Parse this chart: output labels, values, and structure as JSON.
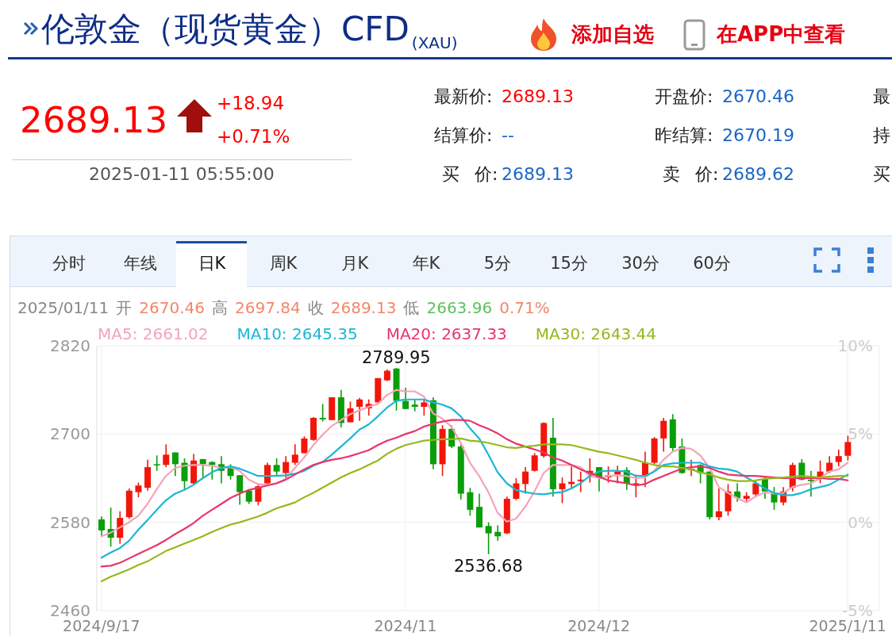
{
  "chart_data": {
    "type": "candlestick",
    "title": "伦敦金（现货黄金）CFD$_{(XAU)}$",
    "categories": [
      "2024/9/17",
      null,
      null,
      null,
      null,
      null,
      null,
      null,
      null,
      null,
      null,
      null,
      null,
      null,
      null,
      null,
      null,
      null,
      null,
      null,
      null,
      null,
      null,
      null,
      null,
      null,
      null,
      null,
      null,
      null,
      null,
      null,
      null,
      "2024/11",
      null,
      null,
      null,
      null,
      null,
      null,
      null,
      null,
      null,
      null,
      null,
      null,
      null,
      null,
      null,
      null,
      null,
      null,
      null,
      null,
      "2024/12",
      null,
      null,
      null,
      null,
      null,
      null,
      null,
      null,
      null,
      null,
      null,
      null,
      null,
      null,
      null,
      null,
      null,
      null,
      null,
      null,
      null,
      null,
      null,
      null,
      null,
      null,
      "2025/1/11"
    ],
    "ohlc": [
      [
        2584,
        2588,
        2561,
        2569
      ],
      [
        2571,
        2600,
        2547,
        2559
      ],
      [
        2559,
        2595,
        2551,
        2586
      ],
      [
        2587,
        2626,
        2585,
        2623
      ],
      [
        2621,
        2634,
        2614,
        2630
      ],
      [
        2627,
        2665,
        2623,
        2655
      ],
      [
        2659,
        2671,
        2650,
        2658
      ],
      [
        2658,
        2686,
        2655,
        2672
      ],
      [
        2675,
        2675,
        2643,
        2659
      ],
      [
        2661,
        2667,
        2625,
        2636
      ],
      [
        2633,
        2673,
        2632,
        2664
      ],
      [
        2666,
        2666,
        2641,
        2659
      ],
      [
        2662,
        2663,
        2638,
        2658
      ],
      [
        2659,
        2670,
        2633,
        2650
      ],
      [
        2654,
        2659,
        2638,
        2643
      ],
      [
        2644,
        2644,
        2604,
        2621
      ],
      [
        2623,
        2625,
        2605,
        2608
      ],
      [
        2608,
        2631,
        2603,
        2629
      ],
      [
        2633,
        2661,
        2631,
        2658
      ],
      [
        2658,
        2667,
        2644,
        2649
      ],
      [
        2647,
        2670,
        2640,
        2662
      ],
      [
        2661,
        2686,
        2658,
        2672
      ],
      [
        2674,
        2697,
        2674,
        2694
      ],
      [
        2692,
        2723,
        2691,
        2722
      ],
      [
        2722,
        2741,
        2717,
        2720
      ],
      [
        2719,
        2750,
        2719,
        2750
      ],
      [
        2750,
        2760,
        2709,
        2715
      ],
      [
        2716,
        2744,
        2716,
        2735
      ],
      [
        2737,
        2749,
        2718,
        2747
      ],
      [
        2735,
        2747,
        2725,
        2741
      ],
      [
        2743,
        2776,
        2743,
        2776
      ],
      [
        2773,
        2788,
        2772,
        2786
      ],
      [
        2789,
        2789.95,
        2732,
        2745
      ],
      [
        2745,
        2763,
        2734,
        2734
      ],
      [
        2740,
        2747,
        2731,
        2737
      ],
      [
        2737,
        2747,
        2725,
        2743
      ],
      [
        2746,
        2750,
        2652,
        2659
      ],
      [
        2659,
        2712,
        2643,
        2707
      ],
      [
        2707,
        2712,
        2681,
        2683
      ],
      [
        2683,
        2686,
        2611,
        2619
      ],
      [
        2621,
        2627,
        2589,
        2597
      ],
      [
        2601,
        2619,
        2573,
        2573
      ],
      [
        2575,
        2580,
        2536.68,
        2565
      ],
      [
        2567,
        2576,
        2555,
        2561
      ],
      [
        2565,
        2615,
        2564,
        2612
      ],
      [
        2612,
        2640,
        2610,
        2633
      ],
      [
        2632,
        2655,
        2619,
        2649
      ],
      [
        2650,
        2674,
        2649,
        2671
      ],
      [
        2670,
        2716,
        2668,
        2715
      ],
      [
        2695,
        2722,
        2615,
        2625
      ],
      [
        2625,
        2641,
        2606,
        2633
      ],
      [
        2632,
        2656,
        2627,
        2635
      ],
      [
        2636,
        2649,
        2621,
        2638
      ],
      [
        2645,
        2667,
        2634,
        2650
      ],
      [
        2655,
        2655,
        2622,
        2640
      ],
      [
        2641,
        2656,
        2634,
        2644
      ],
      [
        2645,
        2657,
        2633,
        2649
      ],
      [
        2651,
        2655,
        2624,
        2633
      ],
      [
        2631,
        2645,
        2614,
        2633
      ],
      [
        2643,
        2676,
        2628,
        2661
      ],
      [
        2661,
        2696,
        2659,
        2694
      ],
      [
        2694,
        2722,
        2676,
        2718
      ],
      [
        2720,
        2727,
        2676,
        2681
      ],
      [
        2683,
        2694,
        2646,
        2647
      ],
      [
        2651,
        2665,
        2643,
        2653
      ],
      [
        2658,
        2659,
        2633,
        2647
      ],
      [
        2649,
        2649,
        2584,
        2587
      ],
      [
        2587,
        2626,
        2583,
        2595
      ],
      [
        2595,
        2632,
        2589,
        2622
      ],
      [
        2622,
        2633,
        2608,
        2613
      ],
      [
        2612,
        2621,
        2609,
        2616
      ],
      [
        2618,
        2636,
        2615,
        2633
      ],
      [
        2639,
        2641,
        2612,
        2622
      ],
      [
        2619,
        2628,
        2597,
        2607
      ],
      [
        2607,
        2628,
        2603,
        2622
      ],
      [
        2627,
        2661,
        2622,
        2658
      ],
      [
        2661,
        2666,
        2637,
        2638
      ],
      [
        2638,
        2650,
        2615,
        2636
      ],
      [
        2640,
        2664,
        2633,
        2649
      ],
      [
        2649,
        2670,
        2647,
        2661
      ],
      [
        2662,
        2679,
        2656,
        2670
      ],
      [
        2670.46,
        2697.84,
        2663.96,
        2689.13
      ]
    ],
    "colors": [
      "#0a9e0a",
      "#0a9e0a",
      "#f2160a",
      "#f2160a",
      "#f2160a",
      "#f2160a",
      "#0a9e0a",
      "#f2160a",
      "#0a9e0a",
      "#0a9e0a",
      "#f2160a",
      "#0a9e0a",
      "#0a9e0a",
      "#0a9e0a",
      "#0a9e0a",
      "#0a9e0a",
      "#0a9e0a",
      "#f2160a",
      "#f2160a",
      "#0a9e0a",
      "#f2160a",
      "#f2160a",
      "#f2160a",
      "#f2160a",
      "#0a9e0a",
      "#f2160a",
      "#0a9e0a",
      "#f2160a",
      "#f2160a",
      "#f2160a",
      "#f2160a",
      "#f2160a",
      "#0a9e0a",
      "#0a9e0a",
      "#0a9e0a",
      "#f2160a",
      "#0a9e0a",
      "#f2160a",
      "#0a9e0a",
      "#0a9e0a",
      "#0a9e0a",
      "#0a9e0a",
      "#0a9e0a",
      "#0a9e0a",
      "#f2160a",
      "#f2160a",
      "#f2160a",
      "#f2160a",
      "#f2160a",
      "#0a9e0a",
      "#f2160a",
      "#f2160a",
      "#f2160a",
      "#f2160a",
      "#0a9e0a",
      "#f2160a",
      "#f2160a",
      "#0a9e0a",
      "#f2160a",
      "#f2160a",
      "#f2160a",
      "#f2160a",
      "#0a9e0a",
      "#0a9e0a",
      "#f2160a",
      "#0a9e0a",
      "#0a9e0a",
      "#f2160a",
      "#f2160a",
      "#0a9e0a",
      "#f2160a",
      "#f2160a",
      "#0a9e0a",
      "#0a9e0a",
      "#f2160a",
      "#f2160a",
      "#0a9e0a",
      "#0a9e0a",
      "#f2160a",
      "#f2160a",
      "#f2160a",
      "#f2160a"
    ],
    "series": [
      {
        "type": "line",
        "name": "MA5: 2661.02",
        "color": "#f5a3ba",
        "values": [
          2561,
          2566,
          2573,
          2580,
          2589,
          2605,
          2625,
          2643,
          2654,
          2657,
          2658,
          2658,
          2657,
          2654,
          2655,
          2650,
          2638,
          2632,
          2631,
          2633,
          2639,
          2654,
          2668,
          2685,
          2699,
          2711,
          2719,
          2727,
          2732,
          2737,
          2741,
          2753,
          2760,
          2758,
          2758,
          2751,
          2728,
          2721,
          2710,
          2688,
          2661,
          2643,
          2621,
          2593,
          2581,
          2585,
          2601,
          2622,
          2647,
          2658,
          2658,
          2658,
          2655,
          2643,
          2640,
          2643,
          2644,
          2643,
          2640,
          2641,
          2650,
          2665,
          2676,
          2681,
          2680,
          2671,
          2654,
          2628,
          2620,
          2613,
          2607,
          2615,
          2621,
          2619,
          2620,
          2628,
          2631,
          2633,
          2640,
          2649,
          2652,
          2661
        ]
      },
      {
        "type": "line",
        "name": "MA10: 2645.35",
        "color": "#1cb6d6",
        "values": [
          2532,
          2539,
          2545,
          2555,
          2570,
          2583,
          2597,
          2610,
          2619,
          2624,
          2631,
          2640,
          2648,
          2654,
          2656,
          2653,
          2648,
          2643,
          2643,
          2643,
          2644,
          2646,
          2650,
          2657,
          2662,
          2672,
          2683,
          2694,
          2706,
          2713,
          2724,
          2736,
          2745,
          2747,
          2747,
          2747,
          2743,
          2740,
          2735,
          2724,
          2708,
          2694,
          2672,
          2648,
          2633,
          2624,
          2621,
          2619,
          2618,
          2620,
          2621,
          2626,
          2633,
          2643,
          2649,
          2650,
          2650,
          2649,
          2643,
          2643,
          2649,
          2658,
          2660,
          2661,
          2661,
          2661,
          2656,
          2653,
          2652,
          2649,
          2641,
          2634,
          2626,
          2620,
          2617,
          2617,
          2620,
          2625,
          2628,
          2631,
          2638,
          2645
        ]
      },
      {
        "type": "line",
        "name": "MA20: 2637.33",
        "color": "#e8356b",
        "values": [
          2520,
          2521,
          2525,
          2531,
          2537,
          2543,
          2549,
          2556,
          2564,
          2571,
          2579,
          2589,
          2597,
          2605,
          2613,
          2619,
          2624,
          2627,
          2630,
          2633,
          2638,
          2645,
          2652,
          2658,
          2662,
          2665,
          2667,
          2670,
          2674,
          2678,
          2685,
          2691,
          2695,
          2700,
          2704,
          2710,
          2714,
          2717,
          2719,
          2719,
          2718,
          2712,
          2707,
          2701,
          2693,
          2687,
          2683,
          2679,
          2675,
          2668,
          2664,
          2658,
          2652,
          2647,
          2642,
          2637,
          2635,
          2633,
          2630,
          2632,
          2638,
          2643,
          2648,
          2653,
          2655,
          2656,
          2654,
          2649,
          2645,
          2644,
          2643,
          2643,
          2642,
          2641,
          2640,
          2640,
          2640,
          2640,
          2640,
          2639,
          2639,
          2637
        ]
      },
      {
        "type": "line",
        "name": "MA30: 2643.44",
        "color": "#94b91c",
        "values": [
          2500,
          2506,
          2511,
          2516,
          2522,
          2527,
          2534,
          2541,
          2546,
          2551,
          2556,
          2561,
          2567,
          2572,
          2577,
          2580,
          2584,
          2588,
          2593,
          2599,
          2603,
          2607,
          2614,
          2620,
          2627,
          2634,
          2641,
          2647,
          2652,
          2658,
          2664,
          2673,
          2680,
          2685,
          2688,
          2691,
          2692,
          2693,
          2693,
          2694,
          2691,
          2690,
          2688,
          2685,
          2682,
          2681,
          2683,
          2684,
          2686,
          2686,
          2686,
          2685,
          2682,
          2679,
          2676,
          2674,
          2671,
          2668,
          2665,
          2661,
          2658,
          2656,
          2656,
          2654,
          2652,
          2648,
          2645,
          2641,
          2638,
          2636,
          2636,
          2637,
          2639,
          2640,
          2641,
          2642,
          2643,
          2642,
          2641,
          2642,
          2643,
          2643
        ]
      }
    ],
    "ylim": [
      2460,
      2820
    ],
    "yticks": [
      2460,
      2580,
      2700,
      2820
    ],
    "y2lim": [
      -5,
      10
    ],
    "y2ticks": [
      {
        "value": -5,
        "label": "-5%"
      },
      {
        "value": 0,
        "label": "0%"
      },
      {
        "value": 5,
        "label": "5%"
      },
      {
        "value": 10,
        "label": "10%"
      }
    ],
    "grid": true,
    "annotations": [
      "添加自选",
      "在APP中查看",
      "2689.13",
      "+18.94",
      "+0.71%",
      "2025-01-11 05:55:00",
      "最新价:",
      "2689.13",
      "开盘价:",
      "2670.46",
      "最",
      "结算价:",
      "--",
      "昨结算:",
      "2670.19",
      "持",
      "买 价:",
      "2689.13",
      "卖 价:",
      "2689.62",
      "买",
      "分时",
      "年线",
      "日K",
      "周K",
      "月K",
      "年K",
      "5分",
      "15分",
      "30分",
      "60分",
      "2025/01/11",
      "开",
      "2670.46",
      "高",
      "2697.84",
      "收",
      "2689.13",
      "低",
      "2663.96",
      "0.71%",
      {
        "text": "2789.95",
        "y": 2789.95
      },
      {
        "text": "2536.68",
        "y": 2536.68
      }
    ]
  }
}
